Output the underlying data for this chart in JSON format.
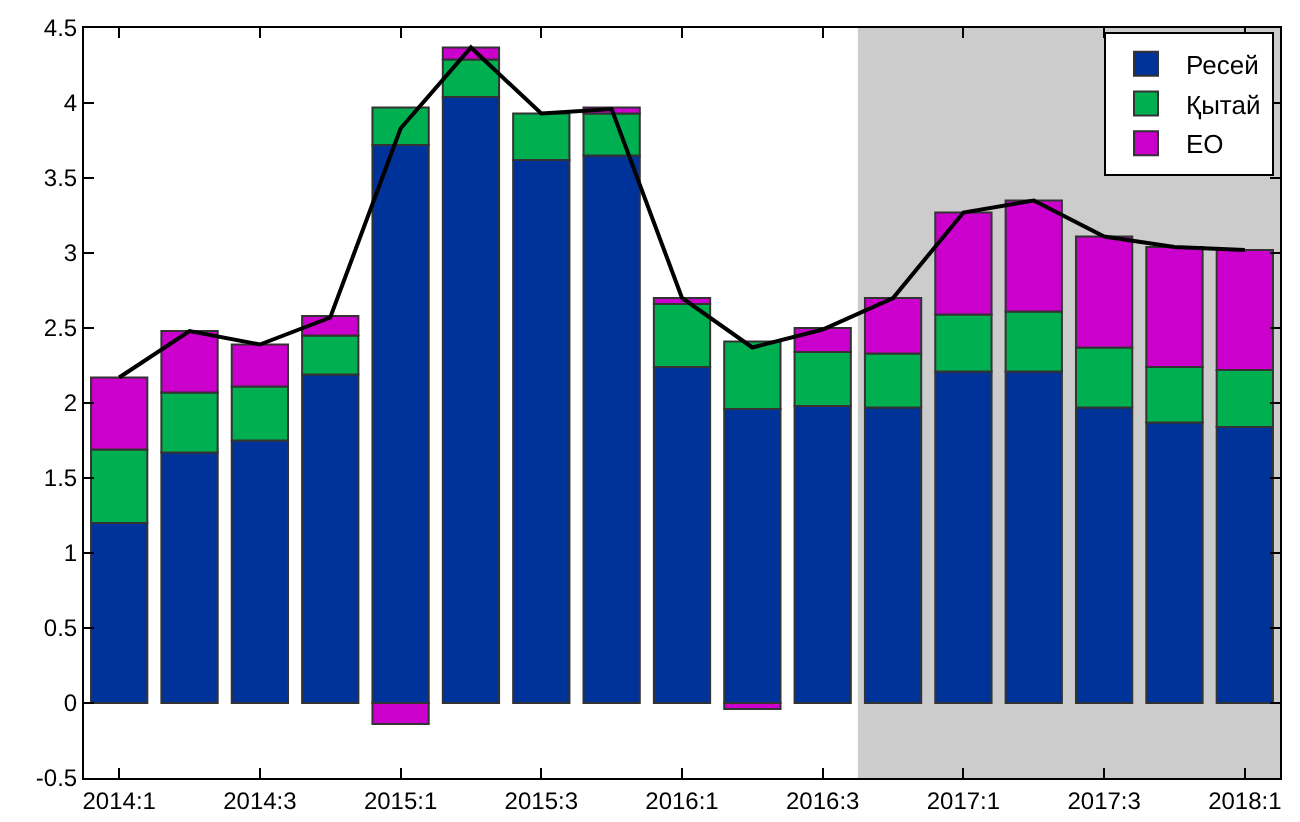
{
  "chart_data": {
    "type": "bar",
    "stacked": true,
    "categories": [
      "2014:1",
      null,
      "2014:3",
      null,
      "2015:1",
      null,
      "2015:3",
      null,
      "2016:1",
      null,
      "2016:3",
      null,
      "2017:1",
      null,
      "2017:3",
      null,
      "2018:1"
    ],
    "series": [
      {
        "name": "Ресей",
        "color": "#003399",
        "values": [
          1.2,
          1.67,
          1.75,
          2.19,
          3.72,
          4.04,
          3.62,
          3.65,
          2.24,
          1.96,
          1.98,
          1.97,
          2.21,
          2.21,
          1.97,
          1.87,
          1.84
        ]
      },
      {
        "name": "Қытай",
        "color": "#00b050",
        "values": [
          0.49,
          0.4,
          0.36,
          0.26,
          0.25,
          0.25,
          0.31,
          0.28,
          0.42,
          0.45,
          0.36,
          0.36,
          0.38,
          0.4,
          0.4,
          0.37,
          0.38
        ]
      },
      {
        "name": "ЕО",
        "color": "#cc00cc",
        "values": [
          0.48,
          0.41,
          0.28,
          0.13,
          -0.14,
          0.08,
          null,
          0.04,
          0.04,
          -0.04,
          0.16,
          0.37,
          0.68,
          0.74,
          0.74,
          0.8,
          0.8
        ]
      },
      {
        "type": "line",
        "color": "#000000",
        "values": [
          2.17,
          2.48,
          2.39,
          2.57,
          3.83,
          4.37,
          3.93,
          3.96,
          2.7,
          2.37,
          2.49,
          2.7,
          3.27,
          3.35,
          3.11,
          3.04,
          3.02
        ]
      }
    ],
    "ylim": [
      -0.5,
      4.5
    ],
    "yticks": [
      -0.5,
      0,
      0.5,
      1,
      1.5,
      2,
      2.5,
      3,
      3.5,
      4,
      4.5
    ],
    "bands": [
      {
        "axis": "x",
        "from": "2016:3",
        "to": "2018:1",
        "color": "#cccccc"
      }
    ],
    "grid": false,
    "legend": "top right"
  }
}
